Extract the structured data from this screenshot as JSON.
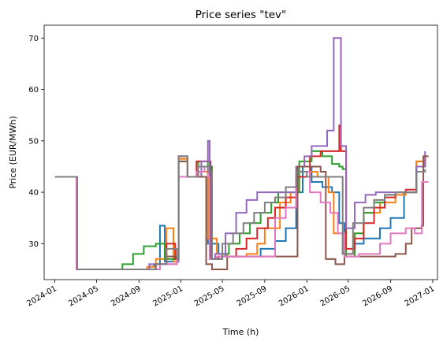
{
  "chart_data": {
    "type": "line",
    "title": "Price series \"tev\"",
    "xlabel": "Time (h)",
    "ylabel": "Price (EUR/MWh)",
    "xlim": [
      "2023-12-01",
      "2027-01-15"
    ],
    "ylim": [
      23,
      72.5
    ],
    "x_ticks": [
      "2024-01",
      "2024-05",
      "2024-09",
      "2025-01",
      "2025-05",
      "2025-09",
      "2026-01",
      "2026-05",
      "2026-09",
      "2027-01"
    ],
    "y_ticks": [
      30,
      40,
      50,
      60,
      70
    ],
    "line_style": "step",
    "series": [
      {
        "color": "#1f77b4",
        "points": [
          [
            "2024-01-01",
            43
          ],
          [
            "2024-03-01",
            43
          ],
          [
            "2024-03-04",
            25
          ],
          [
            "2024-10-01",
            25.5
          ],
          [
            "2024-10-15",
            26
          ],
          [
            "2024-11-01",
            33.5
          ],
          [
            "2024-11-15",
            26.5
          ],
          [
            "2024-12-20",
            26.5
          ],
          [
            "2024-12-25",
            46.5
          ],
          [
            "2025-01-15",
            46.5
          ],
          [
            "2025-01-20",
            43
          ],
          [
            "2025-03-10",
            43
          ],
          [
            "2025-03-20",
            30
          ],
          [
            "2025-04-20",
            28
          ],
          [
            "2025-05-10",
            27.5
          ],
          [
            "2025-07-01",
            27.5
          ],
          [
            "2025-08-20",
            29
          ],
          [
            "2025-10-01",
            30.5
          ],
          [
            "2025-11-01",
            33
          ],
          [
            "2025-12-01",
            40
          ],
          [
            "2025-12-20",
            45
          ],
          [
            "2026-01-15",
            42
          ],
          [
            "2026-02-15",
            41
          ],
          [
            "2026-03-15",
            40
          ],
          [
            "2026-04-05",
            34
          ],
          [
            "2026-04-20",
            28
          ],
          [
            "2026-05-15",
            30
          ],
          [
            "2026-06-15",
            31
          ],
          [
            "2026-08-01",
            33
          ],
          [
            "2026-09-01",
            35
          ],
          [
            "2026-10-10",
            40
          ],
          [
            "2026-11-15",
            46
          ],
          [
            "2026-12-10",
            46
          ]
        ]
      },
      {
        "color": "#ff7f0e",
        "points": [
          [
            "2024-01-01",
            43
          ],
          [
            "2024-03-01",
            43
          ],
          [
            "2024-03-04",
            25
          ],
          [
            "2024-09-25",
            25.5
          ],
          [
            "2024-10-20",
            27
          ],
          [
            "2024-11-20",
            33
          ],
          [
            "2024-12-10",
            26.5
          ],
          [
            "2024-12-20",
            26.5
          ],
          [
            "2024-12-25",
            46.5
          ],
          [
            "2025-01-15",
            46.5
          ],
          [
            "2025-01-20",
            43
          ],
          [
            "2025-03-01",
            44
          ],
          [
            "2025-03-20",
            31
          ],
          [
            "2025-04-15",
            28
          ],
          [
            "2025-05-15",
            27.5
          ],
          [
            "2025-07-10",
            28
          ],
          [
            "2025-08-10",
            30
          ],
          [
            "2025-09-01",
            33
          ],
          [
            "2025-10-15",
            38
          ],
          [
            "2025-11-15",
            40
          ],
          [
            "2025-12-10",
            43
          ],
          [
            "2026-01-10",
            44
          ],
          [
            "2026-02-01",
            43
          ],
          [
            "2026-03-05",
            40
          ],
          [
            "2026-03-20",
            32
          ],
          [
            "2026-04-15",
            28
          ],
          [
            "2026-05-15",
            32
          ],
          [
            "2026-06-15",
            36
          ],
          [
            "2026-08-01",
            38
          ],
          [
            "2026-09-15",
            39.5
          ],
          [
            "2026-10-15",
            40
          ],
          [
            "2026-11-15",
            46
          ],
          [
            "2026-12-10",
            47
          ]
        ]
      },
      {
        "color": "#2ca02c",
        "points": [
          [
            "2024-01-01",
            43
          ],
          [
            "2024-03-01",
            43
          ],
          [
            "2024-03-04",
            25
          ],
          [
            "2024-06-15",
            25
          ],
          [
            "2024-07-15",
            26
          ],
          [
            "2024-08-15",
            28
          ],
          [
            "2024-09-15",
            29.5
          ],
          [
            "2024-10-20",
            30
          ],
          [
            "2024-11-15",
            27
          ],
          [
            "2024-12-20",
            27
          ],
          [
            "2024-12-25",
            46
          ],
          [
            "2025-01-15",
            46
          ],
          [
            "2025-01-20",
            43
          ],
          [
            "2025-02-20",
            46
          ],
          [
            "2025-03-20",
            45
          ],
          [
            "2025-04-01",
            27
          ],
          [
            "2025-05-01",
            28
          ],
          [
            "2025-05-20",
            30
          ],
          [
            "2025-06-20",
            32
          ],
          [
            "2025-07-20",
            34
          ],
          [
            "2025-08-20",
            36
          ],
          [
            "2025-09-20",
            38
          ],
          [
            "2025-10-10",
            40
          ],
          [
            "2025-11-15",
            40
          ],
          [
            "2025-12-10",
            46
          ],
          [
            "2026-01-15",
            48
          ],
          [
            "2026-02-15",
            47
          ],
          [
            "2026-03-15",
            45.5
          ],
          [
            "2026-04-05",
            45
          ],
          [
            "2026-04-15",
            44.5
          ],
          [
            "2026-04-25",
            27.5
          ],
          [
            "2026-05-20",
            32
          ],
          [
            "2026-06-15",
            36
          ],
          [
            "2026-07-15",
            38
          ],
          [
            "2026-08-15",
            39.5
          ],
          [
            "2026-09-15",
            40
          ],
          [
            "2026-10-15",
            40
          ],
          [
            "2026-11-15",
            45
          ],
          [
            "2026-12-10",
            46
          ]
        ]
      },
      {
        "color": "#d62728",
        "points": [
          [
            "2024-01-01",
            43
          ],
          [
            "2024-03-01",
            43
          ],
          [
            "2024-03-04",
            25
          ],
          [
            "2024-10-01",
            25
          ],
          [
            "2024-10-20",
            26
          ],
          [
            "2024-11-20",
            30
          ],
          [
            "2024-12-15",
            27
          ],
          [
            "2024-12-20",
            27
          ],
          [
            "2024-12-25",
            47
          ],
          [
            "2025-01-15",
            47
          ],
          [
            "2025-01-20",
            43
          ],
          [
            "2025-02-15",
            46
          ],
          [
            "2025-03-20",
            46
          ],
          [
            "2025-03-28",
            27
          ],
          [
            "2025-04-20",
            27.5
          ],
          [
            "2025-06-10",
            29
          ],
          [
            "2025-07-10",
            31
          ],
          [
            "2025-08-10",
            33
          ],
          [
            "2025-09-10",
            35
          ],
          [
            "2025-10-01",
            37
          ],
          [
            "2025-11-01",
            39
          ],
          [
            "2025-12-01",
            43
          ],
          [
            "2026-01-10",
            47
          ],
          [
            "2026-02-10",
            48
          ],
          [
            "2026-03-10",
            48
          ],
          [
            "2026-04-05",
            53
          ],
          [
            "2026-04-10",
            48
          ],
          [
            "2026-04-25",
            29
          ],
          [
            "2026-05-20",
            31
          ],
          [
            "2026-06-15",
            34
          ],
          [
            "2026-07-15",
            37
          ],
          [
            "2026-08-15",
            39
          ],
          [
            "2026-09-15",
            40
          ],
          [
            "2026-10-15",
            40.5
          ],
          [
            "2026-11-15",
            45
          ],
          [
            "2026-12-10",
            47
          ]
        ]
      },
      {
        "color": "#9467bd",
        "points": [
          [
            "2024-01-01",
            43
          ],
          [
            "2024-03-01",
            43
          ],
          [
            "2024-03-04",
            25
          ],
          [
            "2024-09-01",
            25
          ],
          [
            "2024-10-01",
            26
          ],
          [
            "2024-12-20",
            26.5
          ],
          [
            "2024-12-25",
            47
          ],
          [
            "2025-01-15",
            47
          ],
          [
            "2025-01-20",
            43
          ],
          [
            "2025-03-01",
            46
          ],
          [
            "2025-03-20",
            50
          ],
          [
            "2025-03-25",
            27
          ],
          [
            "2025-04-10",
            28
          ],
          [
            "2025-05-10",
            32
          ],
          [
            "2025-06-10",
            36
          ],
          [
            "2025-07-10",
            38.5
          ],
          [
            "2025-08-10",
            40
          ],
          [
            "2025-10-01",
            40
          ],
          [
            "2025-11-15",
            40
          ],
          [
            "2025-12-01",
            45
          ],
          [
            "2025-12-25",
            47
          ],
          [
            "2026-01-15",
            49
          ],
          [
            "2026-02-15",
            49
          ],
          [
            "2026-03-01",
            52
          ],
          [
            "2026-03-20",
            70
          ],
          [
            "2026-04-05",
            70
          ],
          [
            "2026-04-10",
            49
          ],
          [
            "2026-04-25",
            33
          ],
          [
            "2026-05-20",
            38
          ],
          [
            "2026-06-20",
            39.5
          ],
          [
            "2026-07-20",
            40
          ],
          [
            "2026-10-15",
            40
          ],
          [
            "2026-11-15",
            45
          ],
          [
            "2026-12-10",
            48
          ]
        ]
      },
      {
        "color": "#8c564b",
        "points": [
          [
            "2024-01-01",
            43
          ],
          [
            "2024-03-01",
            43
          ],
          [
            "2024-03-04",
            25
          ],
          [
            "2024-10-01",
            25
          ],
          [
            "2024-10-20",
            26
          ],
          [
            "2024-11-20",
            27.5
          ],
          [
            "2024-12-20",
            27
          ],
          [
            "2024-12-25",
            46
          ],
          [
            "2025-01-15",
            46
          ],
          [
            "2025-01-20",
            43
          ],
          [
            "2025-03-01",
            43
          ],
          [
            "2025-03-15",
            26
          ],
          [
            "2025-04-01",
            25
          ],
          [
            "2025-05-15",
            27.5
          ],
          [
            "2025-12-01",
            27.5
          ],
          [
            "2025-12-05",
            45
          ],
          [
            "2026-01-10",
            45
          ],
          [
            "2026-02-10",
            44
          ],
          [
            "2026-02-25",
            27
          ],
          [
            "2026-03-25",
            26
          ],
          [
            "2026-04-20",
            27.5
          ],
          [
            "2026-06-01",
            27.5
          ],
          [
            "2026-09-15",
            28
          ],
          [
            "2026-10-15",
            30
          ],
          [
            "2026-11-01",
            33
          ],
          [
            "2026-11-30",
            33.5
          ],
          [
            "2026-12-05",
            47
          ],
          [
            "2026-12-20",
            47
          ]
        ]
      },
      {
        "color": "#e377c2",
        "points": [
          [
            "2024-01-01",
            43
          ],
          [
            "2024-03-01",
            43
          ],
          [
            "2024-03-04",
            25
          ],
          [
            "2024-10-01",
            25
          ],
          [
            "2024-11-01",
            26
          ],
          [
            "2024-12-20",
            27
          ],
          [
            "2024-12-25",
            43
          ],
          [
            "2025-01-15",
            43
          ],
          [
            "2025-01-20",
            43
          ],
          [
            "2025-02-15",
            44
          ],
          [
            "2025-03-10",
            45
          ],
          [
            "2025-03-20",
            43
          ],
          [
            "2025-03-25",
            27
          ],
          [
            "2025-04-15",
            27.5
          ],
          [
            "2025-07-01",
            27.5
          ],
          [
            "2025-10-01",
            35
          ],
          [
            "2025-11-01",
            37
          ],
          [
            "2025-12-01",
            44
          ],
          [
            "2026-01-10",
            40
          ],
          [
            "2026-02-10",
            38
          ],
          [
            "2026-03-10",
            36
          ],
          [
            "2026-04-01",
            32
          ],
          [
            "2026-04-20",
            27.5
          ],
          [
            "2026-06-01",
            28
          ],
          [
            "2026-08-01",
            30
          ],
          [
            "2026-09-01",
            32
          ],
          [
            "2026-10-15",
            33
          ],
          [
            "2026-11-10",
            32
          ],
          [
            "2026-12-01",
            42
          ],
          [
            "2026-12-20",
            42
          ]
        ]
      },
      {
        "color": "#7f7f7f",
        "points": [
          [
            "2024-01-01",
            43
          ],
          [
            "2024-03-04",
            43
          ],
          [
            "2024-03-06",
            25
          ],
          [
            "2024-10-01",
            25
          ],
          [
            "2024-10-20",
            26
          ],
          [
            "2024-11-20",
            29
          ],
          [
            "2024-12-20",
            27
          ],
          [
            "2024-12-25",
            47
          ],
          [
            "2025-01-15",
            47
          ],
          [
            "2025-01-20",
            43
          ],
          [
            "2025-02-20",
            45
          ],
          [
            "2025-03-20",
            44
          ],
          [
            "2025-04-01",
            27
          ],
          [
            "2025-05-01",
            30
          ],
          [
            "2025-06-01",
            32
          ],
          [
            "2025-07-01",
            34
          ],
          [
            "2025-08-01",
            36
          ],
          [
            "2025-09-01",
            38
          ],
          [
            "2025-10-01",
            39
          ],
          [
            "2025-11-01",
            41
          ],
          [
            "2025-12-01",
            44
          ],
          [
            "2026-01-01",
            43
          ],
          [
            "2026-02-01",
            43
          ],
          [
            "2026-03-01",
            43
          ],
          [
            "2026-04-01",
            43
          ],
          [
            "2026-04-15",
            28
          ],
          [
            "2026-05-15",
            34
          ],
          [
            "2026-06-15",
            37
          ],
          [
            "2026-07-15",
            38.5
          ],
          [
            "2026-08-15",
            39.5
          ],
          [
            "2026-09-15",
            40
          ],
          [
            "2026-10-15",
            40
          ],
          [
            "2026-11-15",
            44
          ],
          [
            "2026-12-10",
            44.5
          ]
        ]
      }
    ],
    "grid": false,
    "legend": "none"
  }
}
